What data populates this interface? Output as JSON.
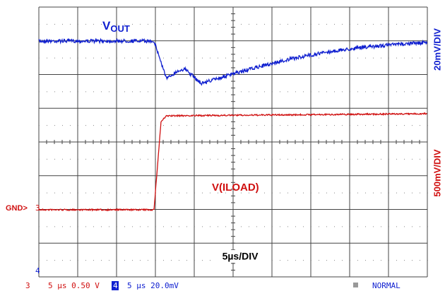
{
  "traces": {
    "vout": {
      "label": {
        "main": "V",
        "sub": "OUT"
      },
      "scale": "20mV/DIV"
    },
    "iload": {
      "label": "V(ILOAD)",
      "scale": "500mV/DIV",
      "ground": "GND>",
      "channel": "3"
    }
  },
  "timebase": "5µs/DIV",
  "channel_marker": "4",
  "status_bar": {
    "ch3": "3",
    "ch3_setting": "5 µs 0.50 V",
    "ch4": "4",
    "ch4_setting": "5 µs 20.0mV",
    "mode": "NORMAL"
  }
}
